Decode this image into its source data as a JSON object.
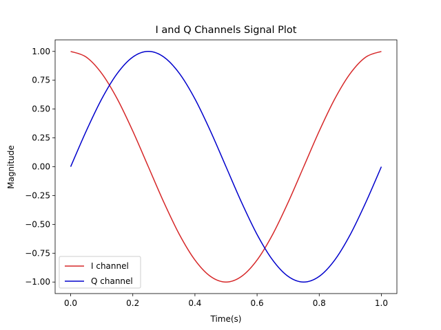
{
  "chart_data": {
    "type": "line",
    "title": "I and Q Channels Signal Plot",
    "xlabel": "Time(s)",
    "ylabel": "Magnitude",
    "xlim": [
      -0.05,
      1.05
    ],
    "ylim": [
      -1.1,
      1.1
    ],
    "xticks": [
      "0.0",
      "0.2",
      "0.4",
      "0.6",
      "0.8",
      "1.0"
    ],
    "xtick_values": [
      0.0,
      0.2,
      0.4,
      0.6,
      0.8,
      1.0
    ],
    "yticks": [
      "1.00",
      "0.75",
      "0.50",
      "0.25",
      "0.00",
      "−0.25",
      "−0.50",
      "−0.75",
      "−1.00"
    ],
    "ytick_values": [
      1.0,
      0.75,
      0.5,
      0.25,
      0.0,
      -0.25,
      -0.5,
      -0.75,
      -1.0
    ],
    "grid": false,
    "legend_position": "lower-left",
    "x": [
      0.0,
      0.05,
      0.1,
      0.15,
      0.2,
      0.25,
      0.3,
      0.35,
      0.4,
      0.45,
      0.5,
      0.55,
      0.6,
      0.65,
      0.7,
      0.75,
      0.8,
      0.85,
      0.9,
      0.95,
      1.0
    ],
    "series": [
      {
        "name": "I channel",
        "color": "#d62728",
        "values": [
          1.0,
          0.951,
          0.809,
          0.588,
          0.309,
          0.0,
          -0.309,
          -0.588,
          -0.809,
          -0.951,
          -1.0,
          -0.951,
          -0.809,
          -0.588,
          -0.309,
          0.0,
          0.309,
          0.588,
          0.809,
          0.951,
          1.0
        ]
      },
      {
        "name": "Q channel",
        "color": "#0000cc",
        "values": [
          0.0,
          0.309,
          0.588,
          0.809,
          0.951,
          1.0,
          0.951,
          0.809,
          0.588,
          0.309,
          0.0,
          -0.309,
          -0.588,
          -0.809,
          -0.951,
          -1.0,
          -0.951,
          -0.809,
          -0.588,
          -0.309,
          0.0
        ]
      }
    ]
  }
}
